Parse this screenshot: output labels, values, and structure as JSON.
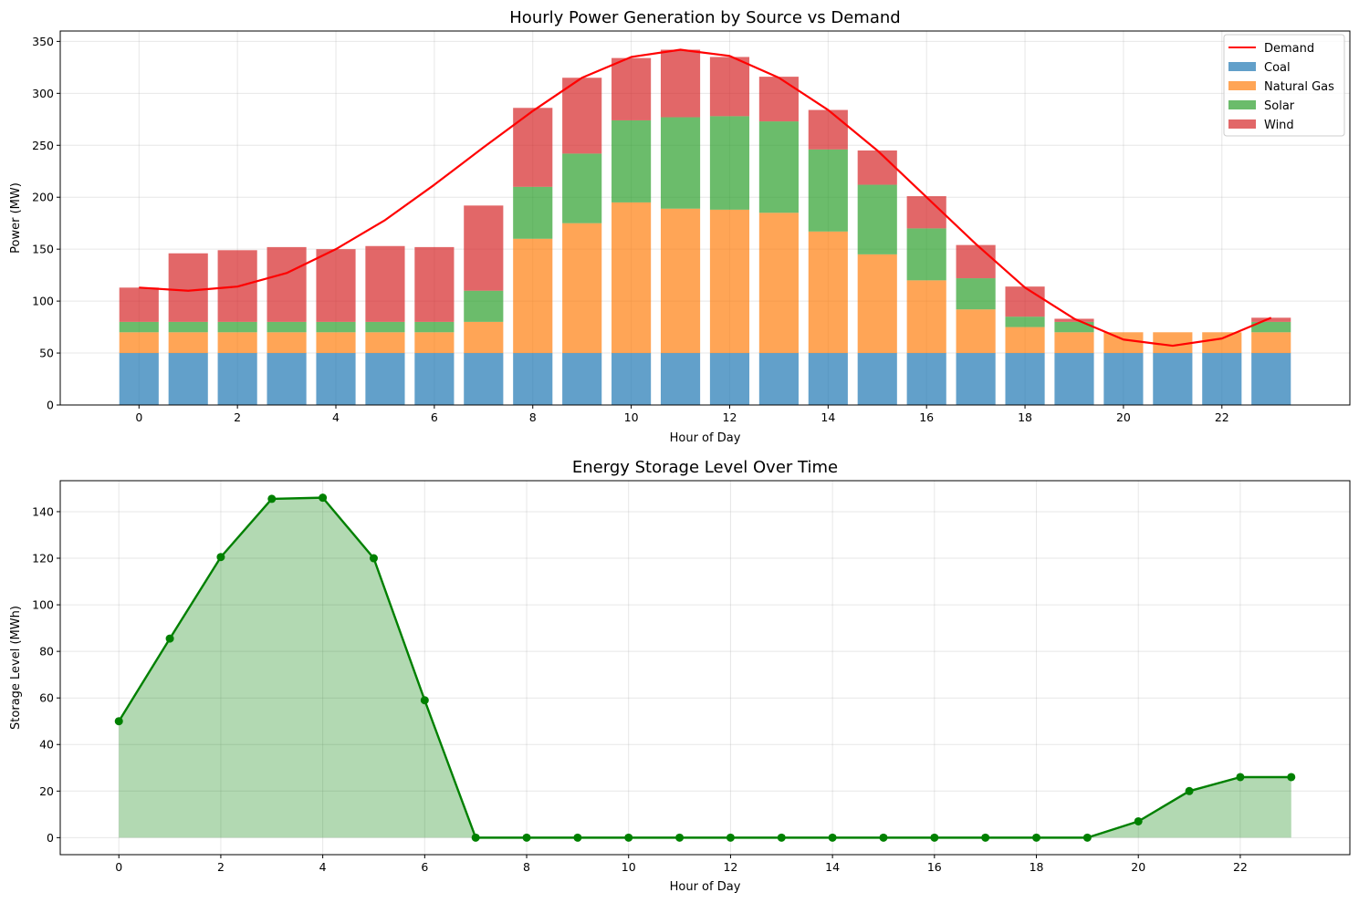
{
  "chart_data": [
    {
      "type": "bar",
      "stacked": true,
      "title": "Hourly Power Generation by Source vs Demand",
      "xlabel": "Hour of Day",
      "ylabel": "Power (MW)",
      "xlim": [
        -1.6,
        24.6
      ],
      "ylim": [
        0,
        360
      ],
      "grid": true,
      "legend_position": "top-right",
      "x_ticks": [
        0,
        2,
        4,
        6,
        8,
        10,
        12,
        14,
        16,
        18,
        20,
        22
      ],
      "y_ticks": [
        0,
        50,
        100,
        150,
        200,
        250,
        300,
        350
      ],
      "categories": [
        0,
        1,
        2,
        3,
        4,
        5,
        6,
        7,
        8,
        9,
        10,
        11,
        12,
        13,
        14,
        15,
        16,
        17,
        18,
        19,
        20,
        21,
        22,
        23
      ],
      "series": [
        {
          "name": "Coal",
          "color": "#1f77b4",
          "values": [
            50,
            50,
            50,
            50,
            50,
            50,
            50,
            50,
            50,
            50,
            50,
            50,
            50,
            50,
            50,
            50,
            50,
            50,
            50,
            50,
            50,
            50,
            50,
            50
          ]
        },
        {
          "name": "Natural Gas",
          "color": "#ff7f0e",
          "values": [
            20,
            20,
            20,
            20,
            20,
            20,
            20,
            30,
            110,
            125,
            145,
            139,
            138,
            135,
            117,
            95,
            70,
            42,
            25,
            20,
            20,
            20,
            20,
            20
          ]
        },
        {
          "name": "Solar",
          "color": "#2ca02c",
          "values": [
            10,
            10,
            10,
            10,
            10,
            10,
            10,
            30,
            50,
            67,
            79,
            88,
            90,
            88,
            79,
            67,
            50,
            30,
            10,
            10,
            0,
            0,
            0,
            10
          ]
        },
        {
          "name": "Wind",
          "color": "#d62728",
          "values": [
            33,
            66,
            69,
            72,
            70,
            73,
            72,
            82,
            76,
            73,
            60,
            65,
            57,
            43,
            38,
            33,
            31,
            32,
            29,
            3,
            0,
            0,
            0,
            4
          ]
        }
      ],
      "line": {
        "name": "Demand",
        "color": "#ff0000",
        "values": [
          113,
          110,
          114,
          127,
          150,
          178,
          212,
          248,
          283,
          315,
          335,
          342,
          336,
          315,
          284,
          245,
          200,
          155,
          113,
          83,
          63,
          57,
          64,
          84
        ]
      },
      "legend": [
        "Demand",
        "Coal",
        "Natural Gas",
        "Solar",
        "Wind"
      ]
    },
    {
      "type": "area",
      "title": "Energy Storage Level Over Time",
      "xlabel": "Hour of Day",
      "ylabel": "Storage Level (MWh)",
      "xlim": [
        -1.15,
        24.15
      ],
      "ylim": [
        -7.3,
        153.3
      ],
      "grid": true,
      "x_ticks": [
        0,
        2,
        4,
        6,
        8,
        10,
        12,
        14,
        16,
        18,
        20,
        22
      ],
      "y_ticks": [
        0,
        20,
        40,
        60,
        80,
        100,
        120,
        140
      ],
      "x": [
        0,
        1,
        2,
        3,
        4,
        5,
        6,
        7,
        8,
        9,
        10,
        11,
        12,
        13,
        14,
        15,
        16,
        17,
        18,
        19,
        20,
        21,
        22,
        23
      ],
      "values": [
        50,
        85.5,
        120.5,
        145.5,
        146,
        120,
        59,
        0,
        0,
        0,
        0,
        0,
        0,
        0,
        0,
        0,
        0,
        0,
        0,
        0,
        7,
        20,
        26,
        26
      ],
      "line_color": "#008000",
      "fill_color": "#008000"
    }
  ]
}
